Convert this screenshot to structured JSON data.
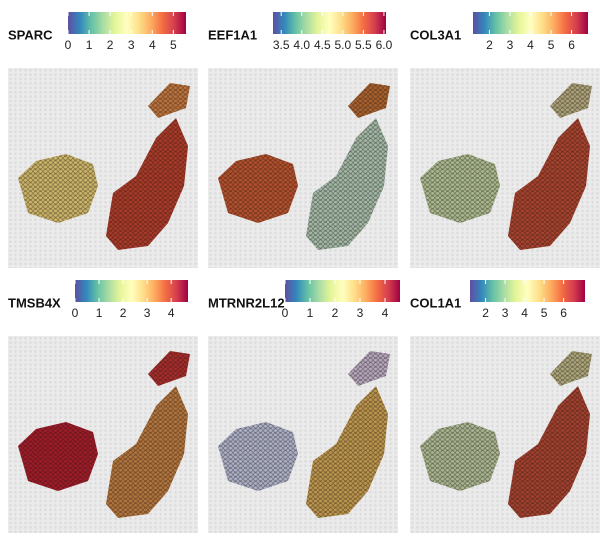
{
  "chart_data": [
    {
      "type": "spatial",
      "title": "SPARC",
      "clim": [
        0,
        5.6
      ],
      "cticks": [
        0,
        1,
        2,
        3,
        4,
        5
      ]
    },
    {
      "type": "spatial",
      "title": "EEF1A1",
      "clim": [
        3.3,
        6.05
      ],
      "cticks": [
        3.5,
        {
          "value": 4,
          "label": "4.0"
        },
        4.5,
        {
          "value": 5,
          "label": "5.0"
        },
        5.5,
        {
          "value": 6,
          "label": "6.0"
        }
      ]
    },
    {
      "type": "spatial",
      "title": "COL3A1",
      "clim": [
        1.2,
        6.8
      ],
      "cticks": [
        2,
        3,
        4,
        5,
        6
      ]
    },
    {
      "type": "spatial",
      "title": "TMSB4X",
      "clim": [
        0,
        4.7
      ],
      "cticks": [
        0,
        1,
        2,
        3,
        4
      ]
    },
    {
      "type": "spatial",
      "title": "MTRNR2L12",
      "clim": [
        0,
        4.6
      ],
      "cticks": [
        0,
        1,
        2,
        3,
        4
      ]
    },
    {
      "type": "spatial",
      "title": "COL1A1",
      "clim": [
        1.2,
        7.1
      ],
      "cticks": [
        2,
        3,
        4,
        5,
        6
      ]
    }
  ]
}
